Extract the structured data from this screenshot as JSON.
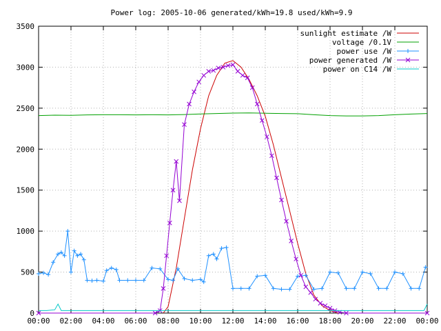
{
  "chart_data": {
    "type": "line",
    "title": "Power log: 2005-10-06 generated/kWh=19.8 used/kWh=9.9",
    "xlabel": "",
    "ylabel": "",
    "ylim": [
      0,
      3500
    ],
    "xlim": [
      0,
      24
    ],
    "grid": true,
    "legend_position": "top-right",
    "x_ticks": [
      "00:00",
      "02:00",
      "04:00",
      "06:00",
      "08:00",
      "10:00",
      "12:00",
      "14:00",
      "16:00",
      "18:00",
      "20:00",
      "22:00",
      "00:00"
    ],
    "y_ticks": [
      "0",
      "500",
      "1000",
      "1500",
      "2000",
      "2500",
      "3000",
      "3500"
    ],
    "series": [
      {
        "name": "sunlight estimate /W",
        "color": "#cc0000",
        "x": [
          7.7,
          8.0,
          8.5,
          9.0,
          9.5,
          10.0,
          10.5,
          11.0,
          11.5,
          12.0,
          12.5,
          13.0,
          13.5,
          14.0,
          14.5,
          15.0,
          15.5,
          16.0,
          16.5,
          17.0,
          17.5,
          18.0,
          18.5
        ],
        "values": [
          0,
          80,
          550,
          1150,
          1750,
          2250,
          2650,
          2900,
          3050,
          3080,
          3000,
          2850,
          2650,
          2400,
          2050,
          1650,
          1250,
          850,
          480,
          220,
          90,
          30,
          0
        ]
      },
      {
        "name": "voltage /0.1V",
        "color": "#00a000",
        "x": [
          0,
          1,
          2,
          3,
          4,
          5,
          6,
          7,
          8,
          9,
          10,
          11,
          12,
          13,
          14,
          15,
          16,
          17,
          18,
          19,
          20,
          21,
          22,
          23,
          24
        ],
        "values": [
          2410,
          2415,
          2412,
          2418,
          2420,
          2420,
          2418,
          2420,
          2418,
          2422,
          2430,
          2435,
          2440,
          2442,
          2438,
          2435,
          2432,
          2420,
          2410,
          2405,
          2405,
          2410,
          2420,
          2428,
          2435
        ]
      },
      {
        "name": "power use /W",
        "color": "#1e90ff",
        "x": [
          0,
          0.3,
          0.6,
          0.9,
          1.2,
          1.4,
          1.6,
          1.8,
          2.0,
          2.2,
          2.4,
          2.6,
          2.8,
          3.0,
          3.3,
          3.6,
          4.0,
          4.2,
          4.5,
          4.8,
          5.0,
          5.5,
          6.0,
          6.5,
          7.0,
          7.5,
          8.0,
          8.3,
          8.6,
          9.0,
          9.5,
          10.0,
          10.2,
          10.5,
          10.8,
          11.0,
          11.3,
          11.6,
          12.0,
          12.5,
          13.0,
          13.5,
          14.0,
          14.5,
          15.0,
          15.5,
          16.0,
          16.5,
          17.0,
          17.5,
          18.0,
          18.5,
          19.0,
          19.5,
          20.0,
          20.5,
          21.0,
          21.5,
          22.0,
          22.5,
          23.0,
          23.5,
          23.9
        ],
        "values": [
          480,
          490,
          470,
          620,
          720,
          740,
          700,
          1000,
          500,
          760,
          700,
          720,
          650,
          400,
          395,
          400,
          390,
          520,
          550,
          530,
          400,
          400,
          400,
          400,
          550,
          540,
          410,
          400,
          540,
          420,
          400,
          410,
          380,
          700,
          720,
          660,
          790,
          800,
          300,
          300,
          300,
          450,
          460,
          300,
          290,
          290,
          450,
          460,
          290,
          300,
          500,
          490,
          300,
          300,
          500,
          480,
          300,
          300,
          500,
          480,
          300,
          300,
          560
        ]
      },
      {
        "name": "power generated /W",
        "color": "#9400d3",
        "x": [
          0,
          7.2,
          7.5,
          7.7,
          7.9,
          8.1,
          8.3,
          8.5,
          8.7,
          9.0,
          9.3,
          9.6,
          9.9,
          10.2,
          10.5,
          10.8,
          11.1,
          11.4,
          11.7,
          12.0,
          12.3,
          12.6,
          12.9,
          13.2,
          13.5,
          13.8,
          14.1,
          14.4,
          14.7,
          15.0,
          15.3,
          15.6,
          15.9,
          16.2,
          16.5,
          16.8,
          17.1,
          17.4,
          17.7,
          18.0,
          18.3,
          18.6,
          19.0,
          24
        ],
        "values": [
          0,
          0,
          30,
          300,
          700,
          1100,
          1500,
          1850,
          1370,
          2300,
          2550,
          2700,
          2820,
          2900,
          2950,
          2960,
          2990,
          3000,
          3020,
          3030,
          2950,
          2900,
          2870,
          2750,
          2550,
          2350,
          2150,
          1920,
          1650,
          1380,
          1120,
          880,
          660,
          460,
          320,
          250,
          170,
          120,
          90,
          60,
          30,
          10,
          0,
          0
        ]
      },
      {
        "name": "power on C14 /W",
        "color": "#00c8c8",
        "x": [
          0,
          0.5,
          1.0,
          1.2,
          1.4,
          2.0,
          4.0,
          8.0,
          12.0,
          16.0,
          20.0,
          23.8,
          24
        ],
        "values": [
          30,
          30,
          40,
          110,
          30,
          30,
          30,
          30,
          30,
          30,
          30,
          30,
          110
        ]
      }
    ]
  }
}
